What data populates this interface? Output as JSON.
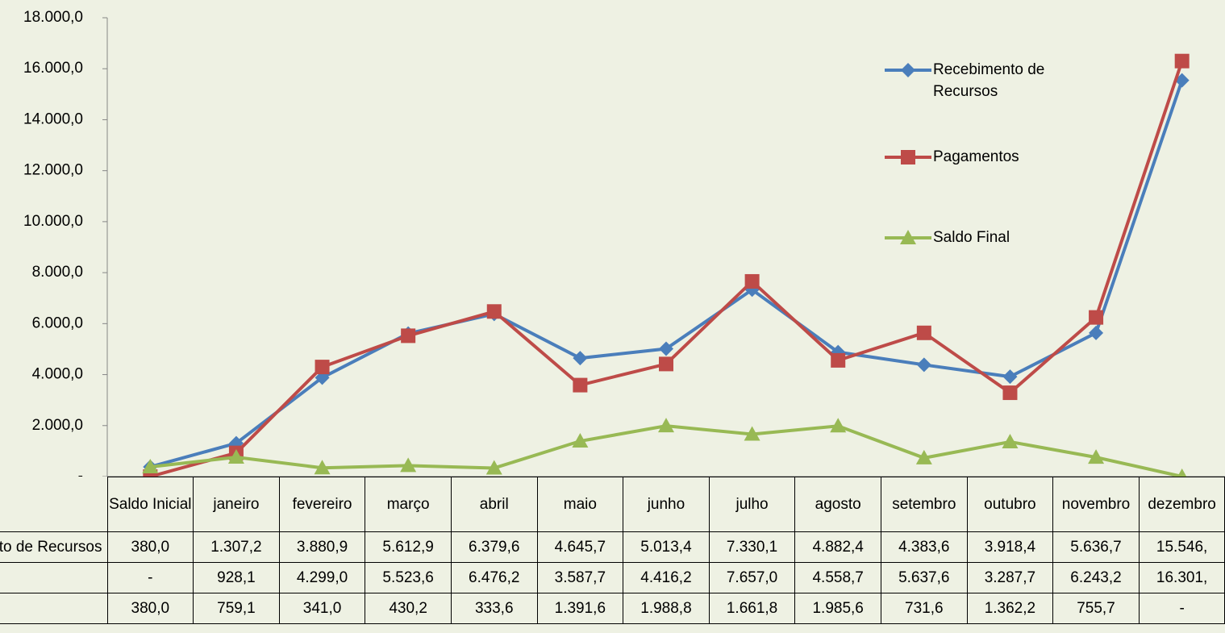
{
  "chart_data": {
    "type": "line",
    "categories": [
      "Saldo Inicial",
      "janeiro",
      "fevereiro",
      "março",
      "abril",
      "maio",
      "junho",
      "julho",
      "agosto",
      "setembro",
      "outubro",
      "novembro",
      "dezembro"
    ],
    "series": [
      {
        "name": "Recebimento de Recursos",
        "color": "#4a7ebb",
        "marker": "diamond",
        "values": [
          380.0,
          1307.2,
          3880.9,
          5612.9,
          6379.6,
          4645.7,
          5013.4,
          7330.1,
          4882.4,
          4383.6,
          3918.4,
          5636.7,
          15546
        ],
        "value_labels": [
          "380,0",
          "1.307,2",
          "3.880,9",
          "5.612,9",
          "6.379,6",
          "4.645,7",
          "5.013,4",
          "7.330,1",
          "4.882,4",
          "4.383,6",
          "3.918,4",
          "5.636,7",
          "15.546,"
        ]
      },
      {
        "name": "Pagamentos",
        "color": "#be4b48",
        "marker": "square",
        "values": [
          0,
          928.1,
          4299.0,
          5523.6,
          6476.2,
          3587.7,
          4416.2,
          7657.0,
          4558.7,
          5637.6,
          3287.7,
          6243.2,
          16301
        ],
        "value_labels": [
          "-",
          "928,1",
          "4.299,0",
          "5.523,6",
          "6.476,2",
          "3.587,7",
          "4.416,2",
          "7.657,0",
          "4.558,7",
          "5.637,6",
          "3.287,7",
          "6.243,2",
          "16.301,"
        ]
      },
      {
        "name": "Saldo Final",
        "color": "#98b954",
        "marker": "triangle",
        "values": [
          380.0,
          759.1,
          341.0,
          430.2,
          333.6,
          1391.6,
          1988.8,
          1661.8,
          1985.6,
          731.6,
          1362.2,
          755.7,
          0
        ],
        "value_labels": [
          "380,0",
          "759,1",
          "341,0",
          "430,2",
          "333,6",
          "1.391,6",
          "1.988,8",
          "1.661,8",
          "1.985,6",
          "731,6",
          "1.362,2",
          "755,7",
          "-"
        ]
      }
    ],
    "ylim": [
      0,
      18000
    ],
    "yticks": [
      {
        "value": 0,
        "label": "-"
      },
      {
        "value": 2000,
        "label": "2.000,0"
      },
      {
        "value": 4000,
        "label": "4.000,0"
      },
      {
        "value": 6000,
        "label": "6.000,0"
      },
      {
        "value": 8000,
        "label": "8.000,0"
      },
      {
        "value": 10000,
        "label": "10.000,0"
      },
      {
        "value": 12000,
        "label": "12.000,0"
      },
      {
        "value": 14000,
        "label": "14.000,0"
      },
      {
        "value": 16000,
        "label": "16.000,0"
      },
      {
        "value": 18000,
        "label": "18.000,0"
      }
    ],
    "grid": false
  }
}
